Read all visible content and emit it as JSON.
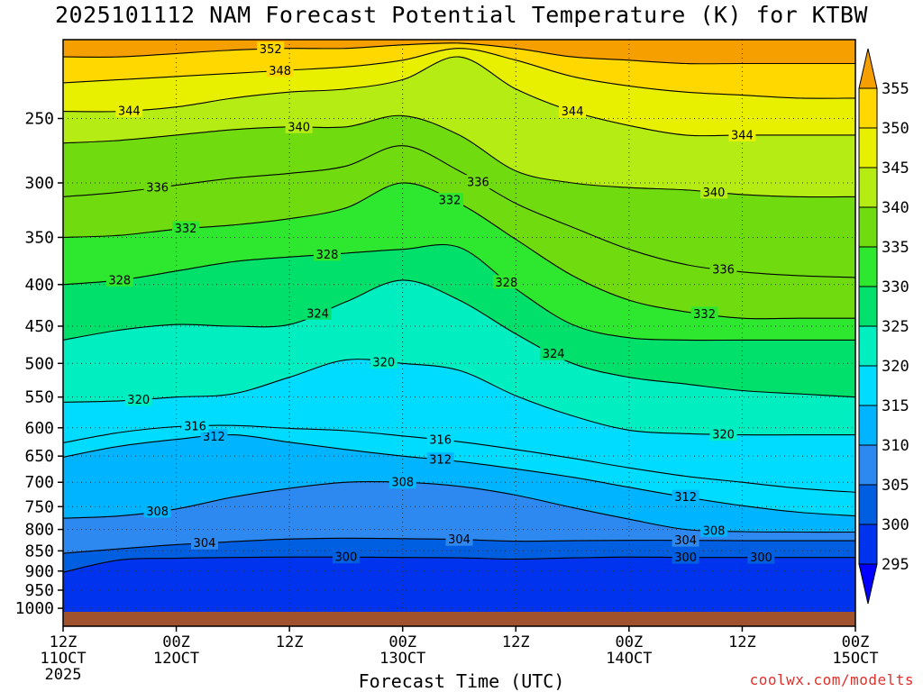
{
  "chart_data": {
    "type": "heatmap",
    "title": "2025101112 NAM Forecast Potential Temperature (K) for KTBW",
    "xlabel": "Forecast Time (UTC)",
    "ylabel": "Pressure (hPa)",
    "y_ticks": [
      250,
      300,
      350,
      400,
      450,
      500,
      550,
      600,
      650,
      700,
      750,
      800,
      850,
      900,
      950,
      1000
    ],
    "y_range": [
      200,
      1010
    ],
    "x_ticks": [
      {
        "hour": 0,
        "line1": "12Z",
        "line2": "11OCT",
        "line3": "2025"
      },
      {
        "hour": 12,
        "line1": "00Z",
        "line2": "12OCT",
        "line3": ""
      },
      {
        "hour": 24,
        "line1": "12Z",
        "line2": "",
        "line3": ""
      },
      {
        "hour": 36,
        "line1": "00Z",
        "line2": "13OCT",
        "line3": ""
      },
      {
        "hour": 48,
        "line1": "12Z",
        "line2": "",
        "line3": ""
      },
      {
        "hour": 60,
        "line1": "00Z",
        "line2": "14OCT",
        "line3": ""
      },
      {
        "hour": 72,
        "line1": "12Z",
        "line2": "",
        "line3": ""
      },
      {
        "hour": 84,
        "line1": "00Z",
        "line2": "15OCT",
        "line3": ""
      }
    ],
    "x_range": [
      0,
      84
    ],
    "colorbar": {
      "levels": [
        295,
        300,
        305,
        310,
        315,
        320,
        325,
        330,
        335,
        340,
        345,
        350,
        355
      ],
      "colors": [
        "#0000ff",
        "#0033ee",
        "#005ee0",
        "#2d88f0",
        "#00b4ff",
        "#00dcff",
        "#00eec0",
        "#00e06a",
        "#2ee830",
        "#70dc10",
        "#b4ec14",
        "#e8f000",
        "#ffd800",
        "#f5a000"
      ]
    },
    "isotherms": [
      {
        "value": 300,
        "p": [
          903,
          872,
          868,
          866,
          865,
          865,
          866,
          867,
          870,
          867,
          865,
          866,
          866,
          866,
          866
        ],
        "label_hours": [
          30,
          66,
          74
        ]
      },
      {
        "value": 304,
        "p": [
          856,
          845,
          835,
          828,
          822,
          820,
          821,
          823,
          827,
          826,
          825,
          825,
          826,
          826,
          826
        ],
        "label_hours": [
          15,
          42,
          66
        ]
      },
      {
        "value": 308,
        "p": [
          775,
          770,
          755,
          730,
          712,
          700,
          700,
          708,
          726,
          752,
          777,
          800,
          805,
          806,
          806
        ],
        "label_hours": [
          10,
          36,
          69
        ]
      },
      {
        "value": 312,
        "p": [
          652,
          632,
          620,
          612,
          625,
          638,
          650,
          660,
          674,
          690,
          710,
          730,
          748,
          762,
          770
        ],
        "label_hours": [
          16,
          40,
          66
        ]
      },
      {
        "value": 316,
        "p": [
          626,
          608,
          598,
          596,
          601,
          605,
          614,
          624,
          638,
          654,
          672,
          688,
          700,
          712,
          720
        ],
        "label_hours": [
          14,
          40
        ]
      },
      {
        "value": 320,
        "p": [
          558,
          556,
          550,
          545,
          520,
          495,
          500,
          510,
          548,
          580,
          604,
          610,
          612,
          612,
          612
        ],
        "label_hours": [
          8,
          34,
          70
        ]
      },
      {
        "value": 324,
        "p": [
          468,
          455,
          448,
          450,
          448,
          420,
          395,
          418,
          460,
          500,
          520,
          530,
          540,
          545,
          550
        ],
        "label_hours": [
          27,
          52
        ]
      },
      {
        "value": 328,
        "p": [
          400,
          395,
          385,
          375,
          370,
          366,
          362,
          360,
          405,
          448,
          465,
          468,
          468,
          468,
          468
        ],
        "label_hours": [
          6,
          28,
          47
        ]
      },
      {
        "value": 332,
        "p": [
          350,
          348,
          342,
          338,
          332,
          322,
          300,
          318,
          352,
          390,
          418,
          432,
          440,
          440,
          440
        ],
        "label_hours": [
          13,
          41,
          68
        ]
      },
      {
        "value": 336,
        "p": [
          312,
          308,
          302,
          296,
          292,
          286,
          270,
          290,
          318,
          340,
          362,
          378,
          386,
          390,
          392
        ],
        "label_hours": [
          10,
          44,
          70
        ]
      },
      {
        "value": 340,
        "p": [
          268,
          266,
          262,
          258,
          256,
          256,
          248,
          262,
          290,
          300,
          304,
          306,
          310,
          312,
          312
        ],
        "label_hours": [
          25,
          69
        ]
      },
      {
        "value": 344,
        "p": [
          245,
          245,
          242,
          236,
          232,
          230,
          224,
          210,
          230,
          245,
          255,
          262,
          262,
          262,
          262
        ],
        "label_hours": [
          7,
          54,
          72
        ]
      },
      {
        "value": 348,
        "p": [
          226,
          224,
          222,
          220,
          218,
          216,
          212,
          205,
          212,
          222,
          228,
          232,
          234,
          236,
          236
        ],
        "label_hours": [
          23
        ]
      },
      {
        "value": 352,
        "p": [
          210,
          210,
          208,
          206,
          205,
          205,
          203,
          202,
          205,
          210,
          212,
          214,
          214,
          214,
          214
        ],
        "label_hours": [
          22
        ]
      }
    ]
  },
  "credit": "coolwx.com/modelts"
}
